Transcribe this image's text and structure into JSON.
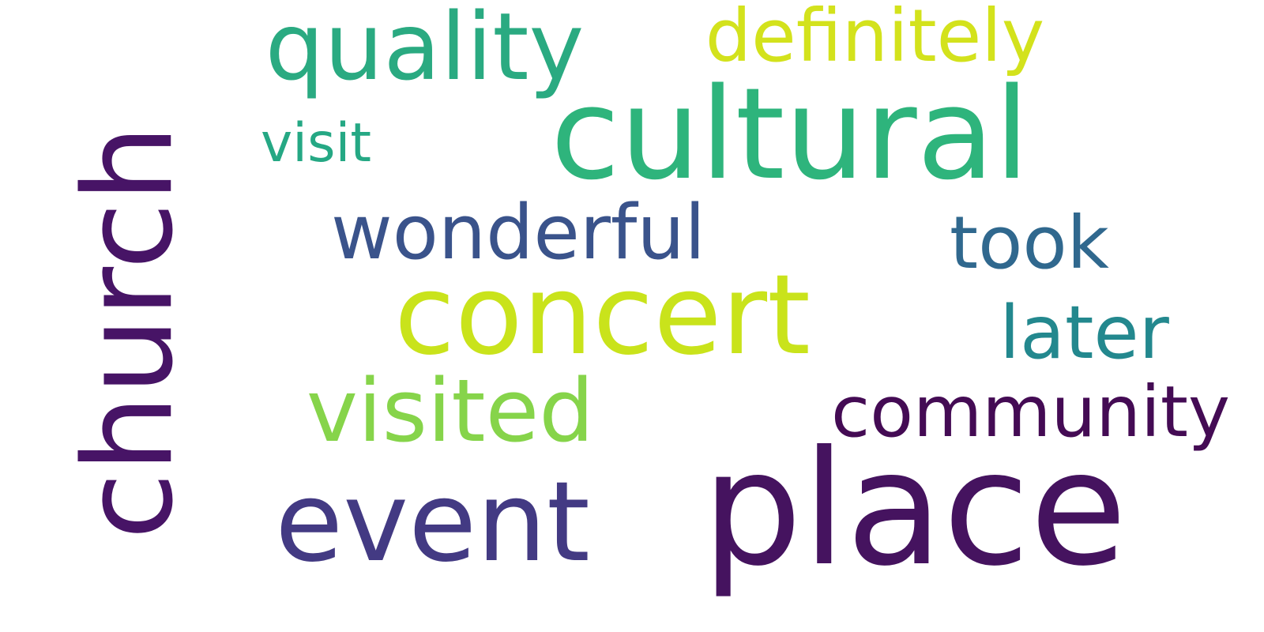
{
  "words": [
    {
      "id": "church",
      "text": "church",
      "color": "#471466"
    },
    {
      "id": "cultural",
      "text": "cultural",
      "color": "#2eb47c"
    },
    {
      "id": "concert",
      "text": "concert",
      "color": "#c9e31b"
    },
    {
      "id": "place",
      "text": "place",
      "color": "#45135f"
    },
    {
      "id": "event",
      "text": "event",
      "color": "#433a83"
    },
    {
      "id": "visited",
      "text": "visited",
      "color": "#86d44a"
    },
    {
      "id": "quality",
      "text": "quality",
      "color": "#2aaa81"
    },
    {
      "id": "definitely",
      "text": "definitely",
      "color": "#d3e21c"
    },
    {
      "id": "wonderful",
      "text": "wonderful",
      "color": "#3a538b"
    },
    {
      "id": "took",
      "text": "took",
      "color": "#30688e"
    },
    {
      "id": "later",
      "text": "later",
      "color": "#23888e"
    },
    {
      "id": "community",
      "text": "community",
      "color": "#440b54"
    },
    {
      "id": "visit",
      "text": "visit",
      "color": "#25a884"
    }
  ]
}
